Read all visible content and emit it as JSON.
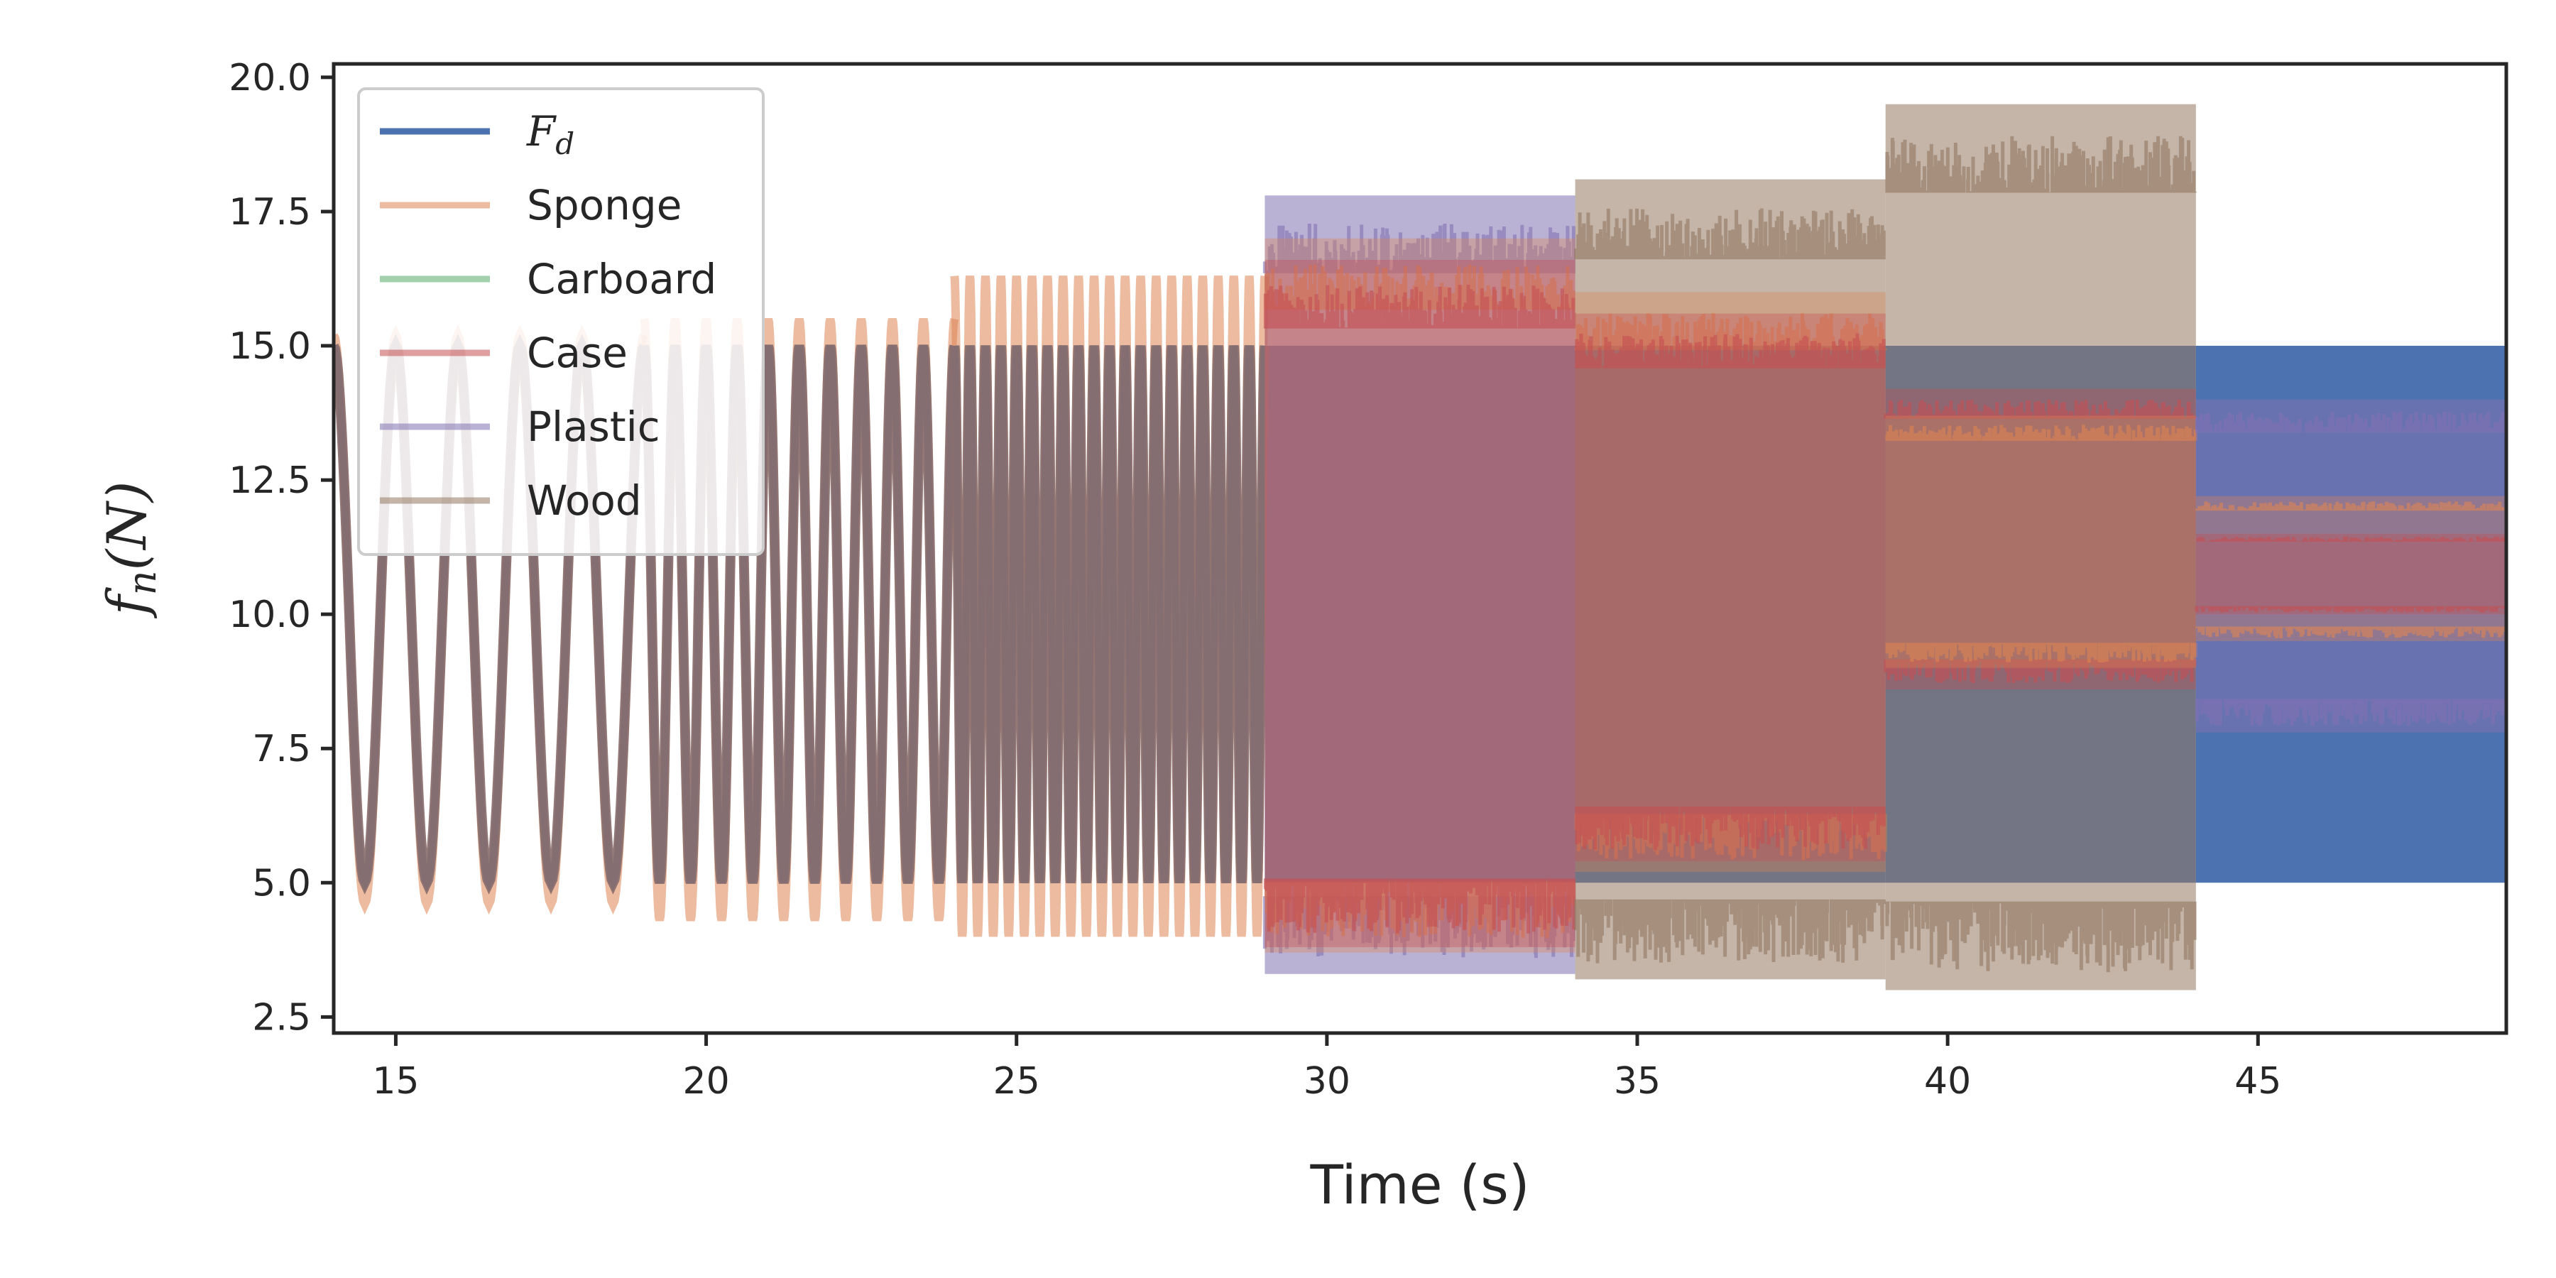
{
  "chart_data": {
    "type": "line",
    "xlabel": "Time (s)",
    "ylabel": {
      "base": "f",
      "sub": "n",
      "rest": "(N)"
    },
    "xlim": [
      14,
      49
    ],
    "ylim": [
      2.2,
      20.25
    ],
    "x_ticks": [
      15,
      20,
      25,
      30,
      35,
      40,
      45
    ],
    "y_ticks": [
      2.5,
      5.0,
      7.5,
      10.0,
      12.5,
      15.0,
      17.5,
      20.0
    ],
    "x_tick_labels": [
      "15",
      "20",
      "25",
      "30",
      "35",
      "40",
      "45"
    ],
    "y_tick_labels": [
      "2.5",
      "5.0",
      "7.5",
      "10.0",
      "12.5",
      "15.0",
      "17.5",
      "20.0"
    ],
    "legend_position": "top-left",
    "legend": [
      {
        "label": "F",
        "sub": "d",
        "math": true,
        "color": "#4c72b0"
      },
      {
        "label": "Sponge",
        "color": "#dd8452"
      },
      {
        "label": "Carboard",
        "color": "#55a868"
      },
      {
        "label": "Case",
        "color": "#c44e52"
      },
      {
        "label": "Plastic",
        "color": "#8172b3"
      },
      {
        "label": "Wood",
        "color": "#937860"
      }
    ],
    "reference_signal": {
      "name": "F_d",
      "center": 10.0,
      "amplitude": 5.0,
      "segments": [
        {
          "t_start": 14,
          "t_end": 19,
          "frequency_hz": 1.0
        },
        {
          "t_start": 19,
          "t_end": 24,
          "frequency_hz": 2.0
        },
        {
          "t_start": 24,
          "t_end": 29,
          "frequency_hz": 4.0
        },
        {
          "t_start": 29,
          "t_end": 34,
          "frequency_hz": "dense"
        },
        {
          "t_start": 34,
          "t_end": 39,
          "frequency_hz": "dense"
        },
        {
          "t_start": 39,
          "t_end": 44,
          "frequency_hz": "dense"
        },
        {
          "t_start": 44,
          "t_end": 49,
          "frequency_hz": "dense"
        }
      ]
    },
    "measured_envelopes": [
      {
        "t_start": 14,
        "t_end": 19,
        "min": 4.6,
        "max": 15.2
      },
      {
        "t_start": 19,
        "t_end": 24,
        "min": 4.3,
        "max": 15.5
      },
      {
        "t_start": 24,
        "t_end": 29,
        "min": 4.0,
        "max": 16.3
      },
      {
        "t_start": 29,
        "t_end": 34,
        "min": 3.3,
        "max": 17.8
      },
      {
        "t_start": 34,
        "t_end": 39,
        "min": 3.2,
        "max": 18.1
      },
      {
        "t_start": 39,
        "t_end": 44,
        "min": 3.0,
        "max": 19.5
      },
      {
        "t_start": 44,
        "t_end": 49,
        "min": 5.9,
        "max": 14.0
      }
    ],
    "segment_bands": [
      {
        "t_start": 29,
        "t_end": 34,
        "bands": [
          {
            "series": "Plastic",
            "min": 3.3,
            "max": 17.8
          },
          {
            "series": "Sponge",
            "min": 3.7,
            "max": 17.0
          },
          {
            "series": "Case",
            "min": 3.8,
            "max": 16.6
          }
        ]
      },
      {
        "t_start": 34,
        "t_end": 39,
        "bands": [
          {
            "series": "Wood",
            "min": 3.2,
            "max": 18.1
          },
          {
            "series": "Sponge",
            "min": 5.2,
            "max": 16.0
          },
          {
            "series": "Case",
            "min": 5.4,
            "max": 15.6
          }
        ]
      },
      {
        "t_start": 39,
        "t_end": 44,
        "bands": [
          {
            "series": "Wood",
            "min": 3.0,
            "max": 19.5
          },
          {
            "series": "Case",
            "min": 8.6,
            "max": 14.2
          },
          {
            "series": "Sponge",
            "min": 9.0,
            "max": 13.7
          }
        ]
      },
      {
        "t_start": 44,
        "t_end": 49,
        "bands": [
          {
            "series": "Plastic",
            "min": 7.8,
            "max": 14.0
          },
          {
            "series": "Sponge",
            "min": 9.5,
            "max": 12.2
          },
          {
            "series": "Case",
            "min": 10.0,
            "max": 11.5
          }
        ]
      }
    ]
  }
}
